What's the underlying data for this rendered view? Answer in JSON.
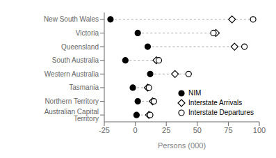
{
  "chart_data": {
    "type": "dot",
    "categories": [
      "New South Wales",
      "Victoria",
      "Queensland",
      "South Australia",
      "Western Australia",
      "Tasmania",
      "Northern Territory",
      "Australian Capital Territory"
    ],
    "series": [
      {
        "name": "NIM",
        "values": [
          -20,
          2,
          10,
          -8,
          12,
          -2,
          2,
          1
        ],
        "color": "#000000",
        "marker": "filled_circle"
      },
      {
        "name": "Interstate Arrivals",
        "values": [
          78,
          65,
          80,
          17,
          32,
          10,
          14,
          11
        ],
        "color": "#000000",
        "marker": "open_diamond"
      },
      {
        "name": "Interstate Departures",
        "values": [
          95,
          63,
          88,
          19,
          43,
          11,
          15,
          12
        ],
        "color": "#000000",
        "marker": "open_circle"
      }
    ],
    "xlim": [
      -25,
      100
    ],
    "xticks": [
      -25,
      0,
      25,
      50,
      75,
      100
    ],
    "xlabel": "Persons (000)",
    "legend": "lower right",
    "grid": false
  }
}
